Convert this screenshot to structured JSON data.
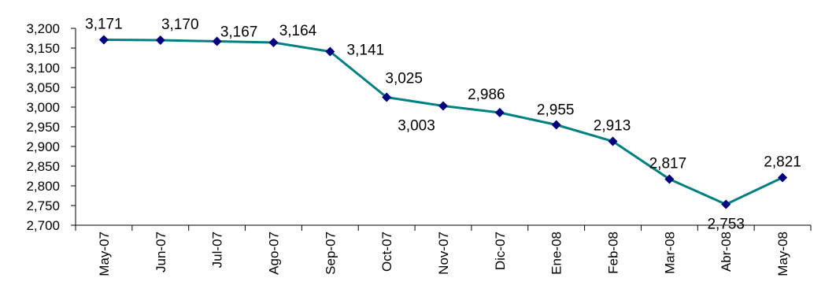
{
  "chart_data": {
    "type": "line",
    "title": "",
    "xlabel": "",
    "ylabel": "",
    "ylim": [
      2700,
      3200
    ],
    "yticks": [
      2700,
      2750,
      2800,
      2850,
      2900,
      2950,
      3000,
      3050,
      3100,
      3150,
      3200
    ],
    "ytick_labels": [
      "2,700",
      "2,750",
      "2,800",
      "2,850",
      "2,900",
      "2,950",
      "3,000",
      "3,050",
      "3,100",
      "3,150",
      "3,200"
    ],
    "grid": false,
    "legend": "none",
    "categories": [
      "May-07",
      "Jun-07",
      "Jul-07",
      "Ago-07",
      "Sep-07",
      "Oct-07",
      "Nov-07",
      "Dic-07",
      "Ene-08",
      "Feb-08",
      "Mar-08",
      "Abr-08",
      "May-08"
    ],
    "series": [
      {
        "values": [
          3171,
          3170,
          3167,
          3164,
          3141,
          3025,
          3003,
          2986,
          2955,
          2913,
          2817,
          2753,
          2821
        ],
        "labels": [
          "3,171",
          "3,170",
          "3,167",
          "3,164",
          "3,141",
          "3,025",
          "3,003",
          "2,986",
          "2,955",
          "2,913",
          "2,817",
          "2,753",
          "2,821"
        ],
        "line_color": "#008080",
        "marker_color": "#000080"
      }
    ]
  }
}
